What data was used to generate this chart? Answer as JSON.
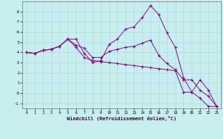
{
  "xlabel": "Windchill (Refroidissement éolien,°C)",
  "background_color": "#c8eef0",
  "line_color": "#800080",
  "grid_color": "#b0d8dc",
  "xlim": [
    -0.5,
    23.5
  ],
  "ylim": [
    -1.5,
    9.0
  ],
  "xticks": [
    0,
    1,
    2,
    3,
    4,
    5,
    6,
    7,
    8,
    9,
    10,
    11,
    12,
    13,
    14,
    15,
    16,
    17,
    18,
    19,
    20,
    21,
    22,
    23
  ],
  "yticks": [
    -1,
    0,
    1,
    2,
    3,
    4,
    5,
    6,
    7,
    8
  ],
  "line1_x": [
    0,
    1,
    2,
    3,
    4,
    5,
    6,
    7,
    8,
    9,
    10,
    11,
    12,
    13,
    14,
    15,
    16,
    17,
    18,
    19,
    20,
    21,
    22,
    23
  ],
  "line1_y": [
    4.0,
    3.9,
    4.2,
    4.3,
    4.6,
    5.3,
    5.3,
    3.9,
    3.0,
    3.2,
    4.8,
    5.3,
    6.3,
    6.5,
    7.4,
    8.6,
    7.7,
    5.9,
    4.5,
    1.5,
    0.1,
    1.3,
    0.3,
    -1.3
  ],
  "line2_x": [
    0,
    1,
    2,
    3,
    4,
    5,
    6,
    7,
    8,
    9,
    10,
    11,
    12,
    13,
    14,
    15,
    16,
    17,
    18,
    19,
    20,
    21,
    22,
    23
  ],
  "line2_y": [
    4.0,
    3.9,
    4.2,
    4.3,
    4.6,
    5.3,
    4.7,
    4.4,
    3.5,
    3.5,
    4.1,
    4.3,
    4.5,
    4.6,
    4.9,
    5.2,
    3.7,
    2.9,
    2.3,
    1.3,
    1.3,
    0.3,
    -0.3,
    -1.3
  ],
  "line3_x": [
    0,
    1,
    2,
    3,
    4,
    5,
    6,
    7,
    8,
    9,
    10,
    11,
    12,
    13,
    14,
    15,
    16,
    17,
    18,
    19,
    20,
    21,
    22,
    23
  ],
  "line3_y": [
    4.0,
    3.9,
    4.2,
    4.3,
    4.6,
    5.3,
    4.5,
    3.5,
    3.2,
    3.1,
    3.0,
    2.9,
    2.8,
    2.7,
    2.6,
    2.5,
    2.4,
    2.3,
    2.2,
    0.1,
    0.1,
    -0.5,
    -1.3,
    -1.3
  ]
}
